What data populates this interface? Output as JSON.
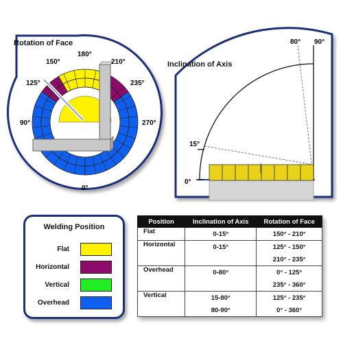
{
  "rotation_panel": {
    "title": "Rotation of Face",
    "angle_labels": {
      "a180": "180°",
      "a150": "150°",
      "a210": "210°",
      "a125": "125°",
      "a235": "235°",
      "a90": "90°",
      "a270": "270°",
      "a0": "0°"
    }
  },
  "inclination_panel": {
    "title": "Inclination of Axis",
    "angle_labels": {
      "a80": "80°",
      "a90": "90°",
      "a15": "15°",
      "a0": "0°"
    }
  },
  "legend": {
    "title": "Welding Position",
    "items": [
      {
        "label": "Flat",
        "color": "#fff200"
      },
      {
        "label": "Horizontal",
        "color": "#8e0b6b"
      },
      {
        "label": "Vertical",
        "color": "#22ee22"
      },
      {
        "label": "Overhead",
        "color": "#1060f0"
      }
    ]
  },
  "table": {
    "headers": [
      "Position",
      "Inclination of Axis",
      "Rotation of Face"
    ],
    "rows": [
      [
        "Flat",
        "0-15°",
        "150° - 210°"
      ],
      [
        "Horizontal",
        "0-15°",
        "125° - 150°"
      ],
      [
        "",
        "",
        "210° - 235°"
      ],
      [
        "Overhead",
        "0-80°",
        "0° - 125°"
      ],
      [
        "",
        "",
        "235° -  360°"
      ],
      [
        "Vertical",
        "15-80°",
        "125° - 235°"
      ],
      [
        "",
        "80-90°",
        "0° - 360°"
      ]
    ]
  },
  "colors": {
    "panel_border": "#1a2e7a",
    "flat": "#fff200",
    "horizontal": "#8e0b6b",
    "overhead": "#1060f0",
    "plate": "#c8c8c8"
  }
}
